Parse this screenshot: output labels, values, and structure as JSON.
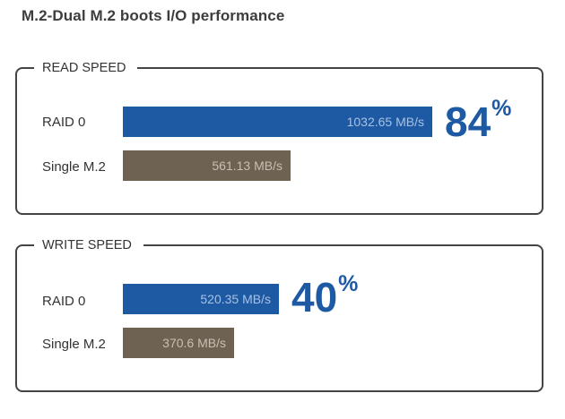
{
  "title": "M.2-Dual M.2 boots I/O performance",
  "colors": {
    "raid": "#1e5aa3",
    "single": "#6e6253",
    "gain": "#1e5aa3",
    "border": "#444444"
  },
  "chart_data": [
    {
      "type": "bar",
      "orientation": "horizontal",
      "title": "READ SPEED",
      "categories": [
        "RAID 0",
        "Single M.2"
      ],
      "values": [
        1032.65,
        561.13
      ],
      "value_labels": [
        "1032.65 MB/s",
        "561.13 MB/s"
      ],
      "unit": "MB/s",
      "xlim": [
        0,
        1032.65
      ],
      "grid": false,
      "gain": {
        "value": "84",
        "unit": "%"
      }
    },
    {
      "type": "bar",
      "orientation": "horizontal",
      "title": "WRITE SPEED",
      "categories": [
        "RAID 0",
        "Single M.2"
      ],
      "values": [
        520.35,
        370.6
      ],
      "value_labels": [
        "520.35 MB/s",
        "370.6 MB/s"
      ],
      "unit": "MB/s",
      "xlim": [
        0,
        1032.65
      ],
      "grid": false,
      "gain": {
        "value": "40",
        "unit": "%"
      }
    }
  ]
}
